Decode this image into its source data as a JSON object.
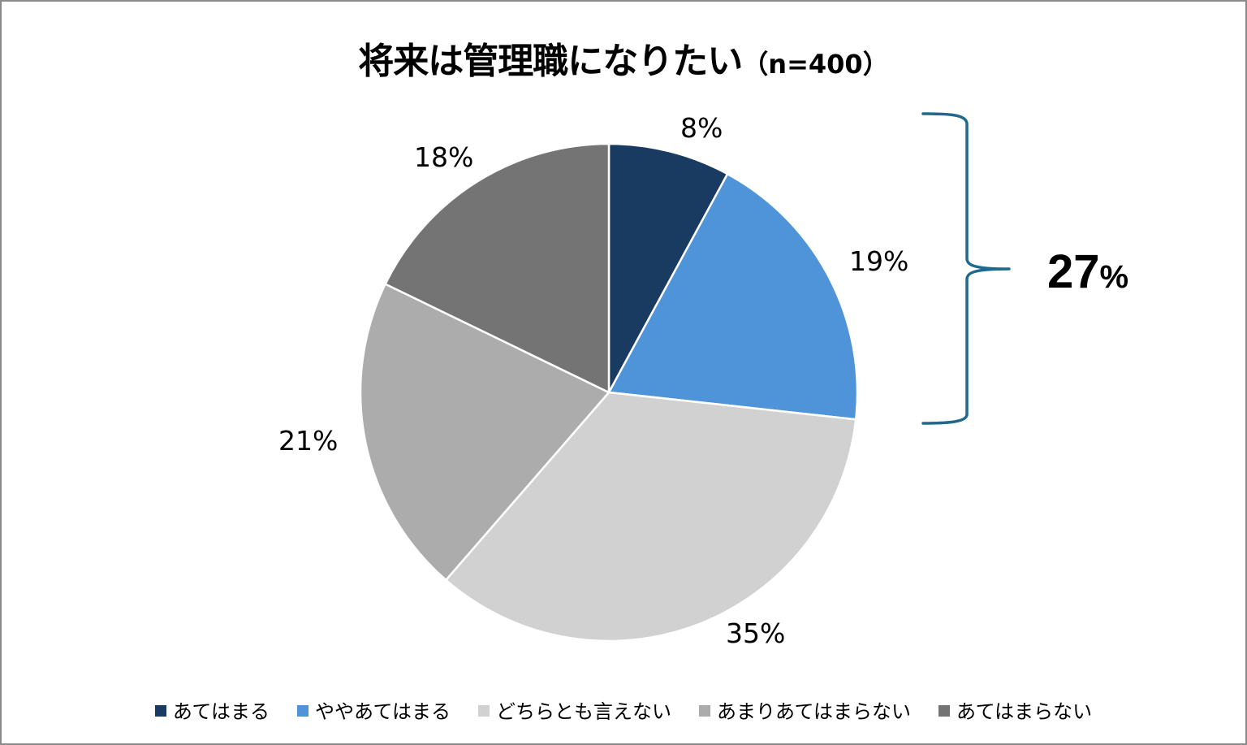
{
  "chart_data": {
    "type": "pie",
    "title": "将来は管理職になりたい",
    "subtitle": "（n=400）",
    "categories": [
      "あてはまる",
      "ややあてはまる",
      "どちらとも言えない",
      "あまりあてはまらない",
      "あてはまらない"
    ],
    "values": [
      8,
      19,
      35,
      21,
      18
    ],
    "value_labels": [
      "8%",
      "19%",
      "35%",
      "21%",
      "18%"
    ],
    "colors": [
      "#193b62",
      "#4f94d9",
      "#d1d1d1",
      "#acacac",
      "#747474"
    ],
    "start_angle_deg": 0,
    "direction": "clockwise",
    "legend_position": "bottom",
    "annotation": {
      "type": "brace",
      "spans": [
        "あてはまる",
        "ややあてはまる"
      ],
      "label": "27%",
      "label_number": "27",
      "label_unit": "%",
      "color": "#1f6a8c"
    }
  },
  "title": {
    "main": "将来は管理職になりたい",
    "sample": "（n=400）"
  },
  "labels": {
    "s0": "8%",
    "s1": "19%",
    "s2": "35%",
    "s3": "21%",
    "s4": "18%"
  },
  "total": {
    "num": "27",
    "unit": "%"
  },
  "legend": [
    {
      "label": "あてはまる",
      "color": "#193b62"
    },
    {
      "label": "ややあてはまる",
      "color": "#4f94d9"
    },
    {
      "label": "どちらとも言えない",
      "color": "#d1d1d1"
    },
    {
      "label": "あまりあてはまらない",
      "color": "#acacac"
    },
    {
      "label": "あてはまらない",
      "color": "#747474"
    }
  ]
}
